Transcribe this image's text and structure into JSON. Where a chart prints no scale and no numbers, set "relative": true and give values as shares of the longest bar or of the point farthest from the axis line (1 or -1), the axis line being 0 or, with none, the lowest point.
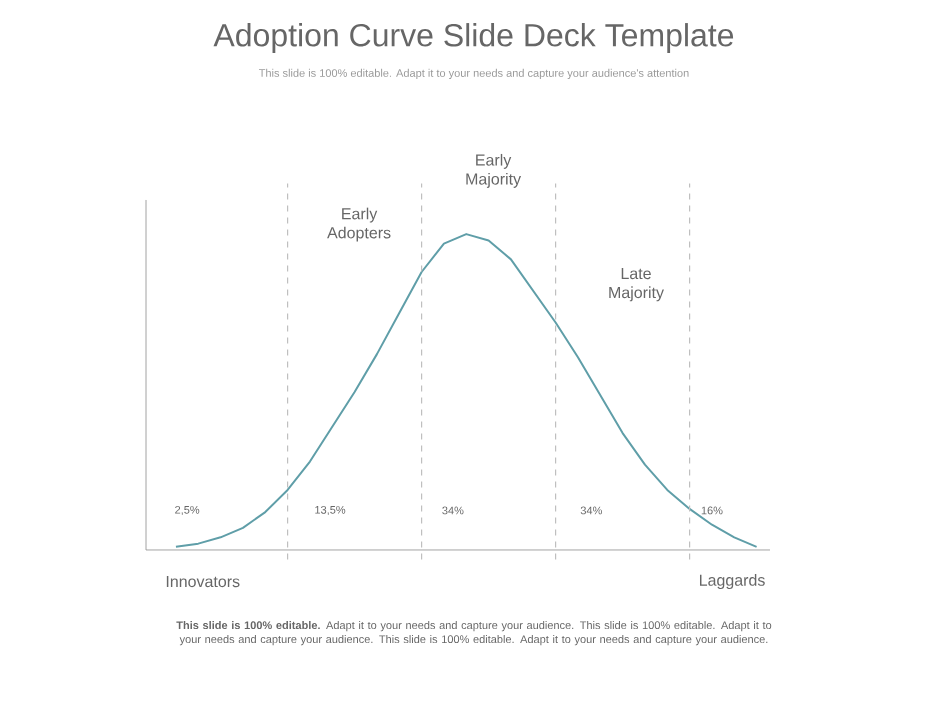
{
  "chart_data": {
    "type": "line",
    "relative": true,
    "title": "Adoption Curve Slide Deck Template",
    "subtitle": "This slide is 100% editable. Adapt it to your needs and capture your audience's attention",
    "categories": [
      null,
      null,
      null,
      null,
      null,
      null,
      null,
      null,
      null,
      null,
      null,
      null,
      null,
      null,
      null,
      null,
      null,
      null,
      null,
      null,
      null,
      null,
      null,
      null,
      null,
      null,
      null
    ],
    "series": [
      {
        "color": "#5f9ea8",
        "values": [
          0.01,
          0.02,
          0.04,
          0.07,
          0.12,
          0.19,
          0.28,
          0.39,
          0.5,
          0.62,
          0.75,
          0.88,
          0.97,
          1,
          0.98,
          0.92,
          0.82,
          0.72,
          0.61,
          0.49,
          0.37,
          0.27,
          0.19,
          0.13,
          0.08,
          0.04,
          0.01
        ]
      }
    ],
    "tick_labels": false,
    "marker": "none",
    "line_style": "solid",
    "grid": "x",
    "annotations": [
      "Innovators",
      "Early Adopters",
      "Early Majority",
      "Late Majority",
      "Laggards",
      "2,5%",
      "13,5%",
      "34%",
      "34%",
      "16%",
      "**This slide is 100% editable.** Adapt it to your needs and capture your audience. This slide is 100% editable. Adapt it to your needs and capture your audience. This slide is 100% editable. Adapt it to your needs and capture your audience."
    ]
  }
}
